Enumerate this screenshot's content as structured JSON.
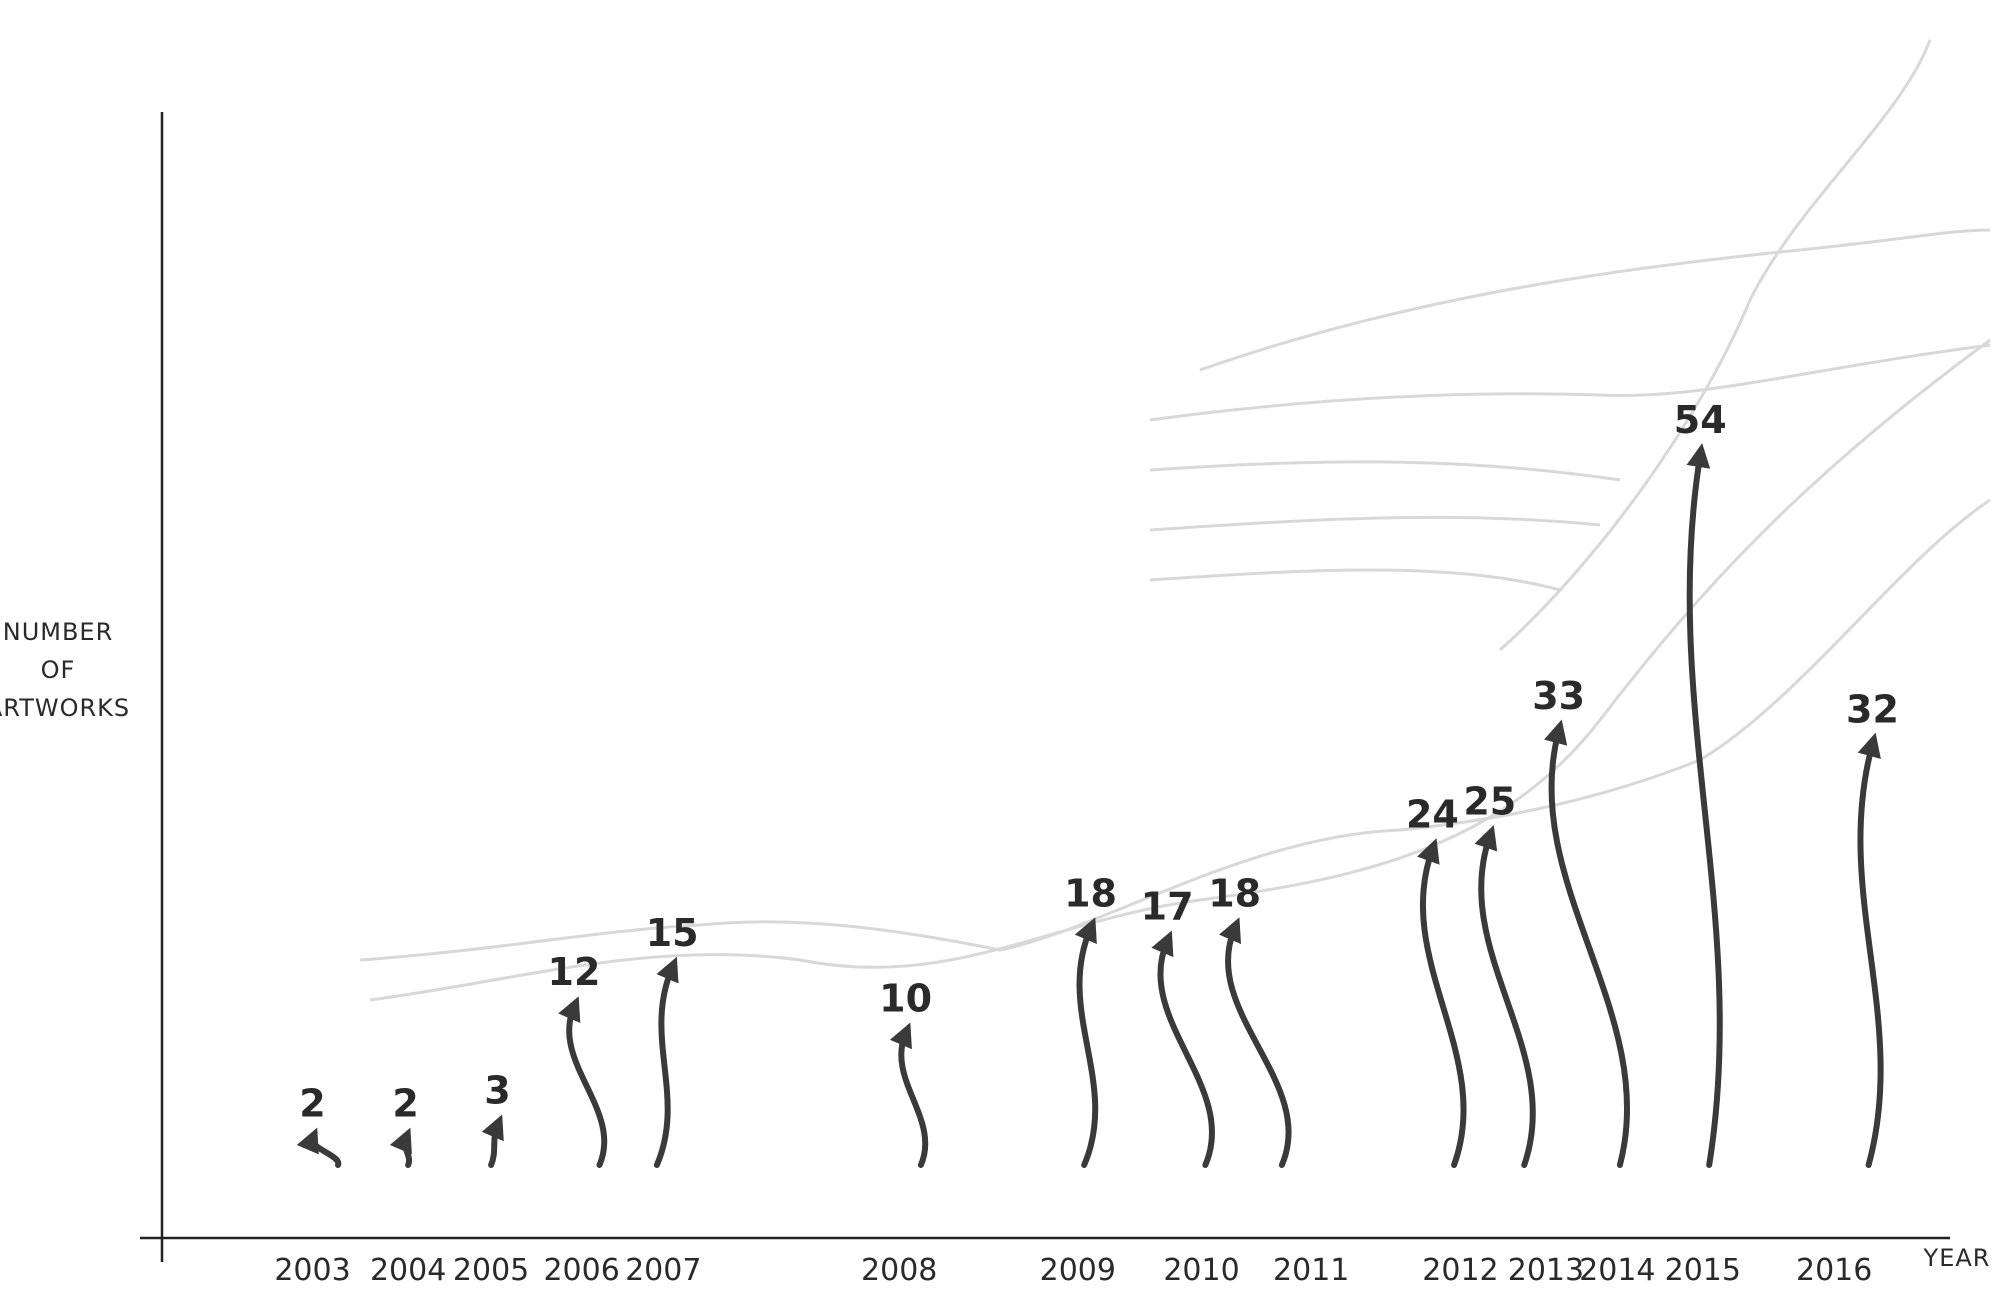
{
  "chart_data": {
    "type": "arrows",
    "y_label": "NUMBER OF ARTWORKS",
    "x_label": "YEAR",
    "categories": [
      "2003",
      "2004",
      "2005",
      "2006",
      "2007",
      "2008",
      "2009",
      "2010",
      "2011",
      "2012",
      "2013",
      "2014",
      "2015",
      "2016"
    ],
    "values": [
      2,
      2,
      3,
      12,
      15,
      10,
      18,
      17,
      18,
      24,
      25,
      33,
      54,
      32
    ],
    "color": "#3a3a3a"
  }
}
